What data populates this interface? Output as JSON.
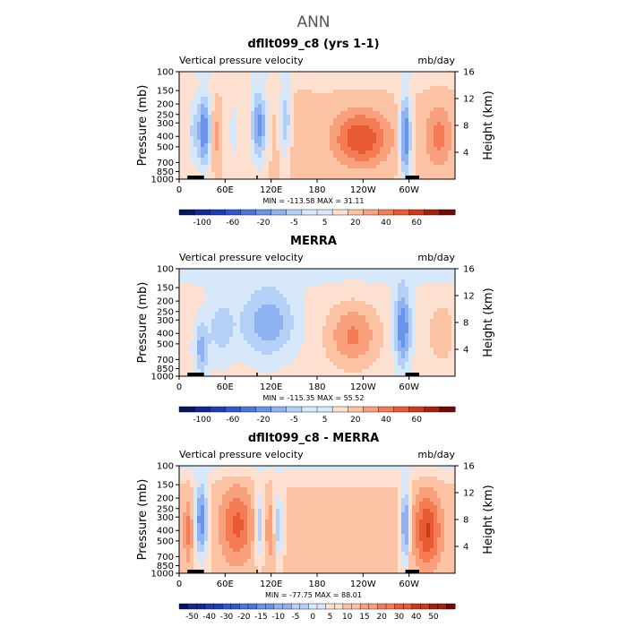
{
  "title": "ANN",
  "colors": {
    "pos": [
      "#fde0cf",
      "#fcc2a4",
      "#f9a07d",
      "#f47c55",
      "#e85a34",
      "#cc3a1c",
      "#a3220e",
      "#6e0d05"
    ],
    "neg": [
      "#d8e8fb",
      "#b4d0f7",
      "#8fb3f0",
      "#6a94e8",
      "#4a76de",
      "#2f57cf",
      "#1f3cb4",
      "#152790",
      "#0b1460"
    ]
  },
  "chart_data": [
    {
      "type": "heatmap",
      "title": "dfllt099_c8 (yrs 1-1)",
      "left_label": "Vertical pressure velocity",
      "right_label": "mb/day",
      "ylabel": "Pressure (mb)",
      "y2label": "Height (km)",
      "x_ticks": [
        "0",
        "60E",
        "120E",
        "180",
        "120W",
        "60W"
      ],
      "y_ticks": [
        "100",
        "150",
        "200",
        "250",
        "300",
        "400",
        "500",
        "700",
        "850",
        "1000"
      ],
      "y2_ticks": [
        "16",
        "12",
        "8",
        "4"
      ],
      "stats": "MIN = -113.58   MAX =  31.11",
      "colorbar_labels": [
        "-100",
        "-60",
        "-20",
        "-5",
        "5",
        "20",
        "40",
        "60"
      ],
      "x_range": [
        0,
        360
      ],
      "y_range": [
        1000,
        100
      ]
    },
    {
      "type": "heatmap",
      "title": "MERRA",
      "left_label": "Vertical pressure velocity",
      "right_label": "mb/day",
      "ylabel": "Pressure (mb)",
      "y2label": "Height (km)",
      "x_ticks": [
        "0",
        "60E",
        "120E",
        "180",
        "120W",
        "60W"
      ],
      "y_ticks": [
        "100",
        "150",
        "200",
        "250",
        "300",
        "400",
        "500",
        "700",
        "850",
        "1000"
      ],
      "y2_ticks": [
        "16",
        "12",
        "8",
        "4"
      ],
      "stats": "MIN = -115.35   MAX =  55.52",
      "colorbar_labels": [
        "-100",
        "-60",
        "-20",
        "-5",
        "5",
        "20",
        "40",
        "60"
      ],
      "x_range": [
        0,
        360
      ],
      "y_range": [
        1000,
        100
      ]
    },
    {
      "type": "heatmap",
      "title": "dfllt099_c8 - MERRA",
      "left_label": "Vertical pressure velocity",
      "right_label": "mb/day",
      "ylabel": "Pressure (mb)",
      "y2label": "Height (km)",
      "x_ticks": [
        "0",
        "60E",
        "120E",
        "180",
        "120W",
        "60W"
      ],
      "y_ticks": [
        "100",
        "150",
        "200",
        "250",
        "300",
        "400",
        "500",
        "700",
        "850",
        "1000"
      ],
      "y2_ticks": [
        "16",
        "12",
        "8",
        "4"
      ],
      "stats": "MIN = -77.75   MAX =  88.01",
      "colorbar_labels": [
        "-50",
        "-40",
        "-30",
        "-20",
        "-15",
        "-10",
        "-5",
        "0",
        "5",
        "10",
        "15",
        "20",
        "30",
        "40",
        "50"
      ],
      "x_range": [
        0,
        360
      ],
      "y_range": [
        1000,
        100
      ]
    }
  ]
}
